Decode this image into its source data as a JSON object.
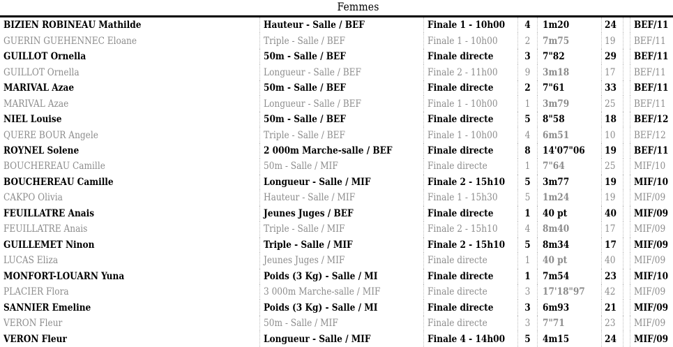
{
  "page": {
    "title": "Femmes"
  },
  "colors": {
    "background": "#ffffff",
    "strong_text": "#000000",
    "muted_text": "#8c8c8c",
    "separator_dotted": "#bcbcbc",
    "top_rule": "#000000"
  },
  "table": {
    "columns": [
      "name",
      "event",
      "final",
      "place",
      "result",
      "points",
      "category"
    ],
    "rows": [
      {
        "name": "BIZIEN ROBINEAU Mathilde",
        "event": "Hauteur - Salle / BEF",
        "final": "Finale 1 - 10h00",
        "place": "4",
        "result": "1m20",
        "points": "24",
        "category": "BEF/11",
        "emphasis": "strong"
      },
      {
        "name": "GUERIN GUEHENNEC Eloane",
        "event": "Triple - Salle / BEF",
        "final": "Finale 1 - 10h00",
        "place": "2",
        "result": "7m75",
        "points": "19",
        "category": "BEF/11",
        "emphasis": "muted"
      },
      {
        "name": "GUILLOT Ornella",
        "event": "50m - Salle / BEF",
        "final": "Finale directe",
        "place": "3",
        "result": "7\"82",
        "points": "29",
        "category": "BEF/11",
        "emphasis": "strong"
      },
      {
        "name": "GUILLOT Ornella",
        "event": "Longueur - Salle / BEF",
        "final": "Finale 2 - 11h00",
        "place": "9",
        "result": "3m18",
        "points": "17",
        "category": "BEF/11",
        "emphasis": "muted"
      },
      {
        "name": "MARIVAL Azae",
        "event": "50m - Salle / BEF",
        "final": "Finale directe",
        "place": "2",
        "result": "7\"61",
        "points": "33",
        "category": "BEF/11",
        "emphasis": "strong"
      },
      {
        "name": "MARIVAL Azae",
        "event": "Longueur - Salle / BEF",
        "final": "Finale 1 - 10h00",
        "place": "1",
        "result": "3m79",
        "points": "25",
        "category": "BEF/11",
        "emphasis": "muted"
      },
      {
        "name": "NIEL Louise",
        "event": "50m - Salle / BEF",
        "final": "Finale directe",
        "place": "5",
        "result": "8\"58",
        "points": "18",
        "category": "BEF/12",
        "emphasis": "strong"
      },
      {
        "name": "QUERE BOUR Angele",
        "event": "Triple - Salle / BEF",
        "final": "Finale 1 - 10h00",
        "place": "4",
        "result": "6m51",
        "points": "10",
        "category": "BEF/12",
        "emphasis": "muted"
      },
      {
        "name": "ROYNEL Solene",
        "event": "2 000m Marche-salle / BEF",
        "final": "Finale directe",
        "place": "8",
        "result": "14'07\"06",
        "points": "19",
        "category": "BEF/11",
        "emphasis": "strong"
      },
      {
        "name": "BOUCHEREAU Camille",
        "event": "50m - Salle / MIF",
        "final": "Finale directe",
        "place": "1",
        "result": "7\"64",
        "points": "25",
        "category": "MIF/10",
        "emphasis": "muted"
      },
      {
        "name": "BOUCHEREAU Camille",
        "event": "Longueur - Salle / MIF",
        "final": "Finale 2 - 15h10",
        "place": "5",
        "result": "3m77",
        "points": "19",
        "category": "MIF/10",
        "emphasis": "strong"
      },
      {
        "name": "CAKPO Olivia",
        "event": "Hauteur - Salle / MIF",
        "final": "Finale 1 - 15h30",
        "place": "5",
        "result": "1m24",
        "points": "19",
        "category": "MIF/09",
        "emphasis": "muted"
      },
      {
        "name": "FEUILLATRE Anais",
        "event": "Jeunes Juges / BEF",
        "final": "Finale directe",
        "place": "1",
        "result": "40 pt",
        "points": "40",
        "category": "MIF/09",
        "emphasis": "strong"
      },
      {
        "name": "FEUILLATRE Anais",
        "event": "Triple - Salle / MIF",
        "final": "Finale 2 - 15h10",
        "place": "4",
        "result": "8m40",
        "points": "17",
        "category": "MIF/09",
        "emphasis": "muted"
      },
      {
        "name": "GUILLEMET Ninon",
        "event": "Triple - Salle / MIF",
        "final": "Finale 2 - 15h10",
        "place": "5",
        "result": "8m34",
        "points": "17",
        "category": "MIF/09",
        "emphasis": "strong"
      },
      {
        "name": "LUCAS Eliza",
        "event": "Jeunes Juges / MIF",
        "final": "Finale directe",
        "place": "1",
        "result": "40 pt",
        "points": "40",
        "category": "MIF/09",
        "emphasis": "muted"
      },
      {
        "name": "MONFORT-LOUARN Yuna",
        "event": "Poids (3 Kg) - Salle / MI",
        "final": "Finale directe",
        "place": "1",
        "result": "7m54",
        "points": "23",
        "category": "MIF/10",
        "emphasis": "strong"
      },
      {
        "name": "PLACIER Flora",
        "event": "3 000m Marche-salle / MIF",
        "final": "Finale directe",
        "place": "3",
        "result": "17'18\"97",
        "points": "42",
        "category": "MIF/09",
        "emphasis": "muted"
      },
      {
        "name": "SANNIER Emeline",
        "event": "Poids (3 Kg) - Salle / MI",
        "final": "Finale directe",
        "place": "3",
        "result": "6m93",
        "points": "21",
        "category": "MIF/09",
        "emphasis": "strong"
      },
      {
        "name": "VERON Fleur",
        "event": "50m - Salle / MIF",
        "final": "Finale directe",
        "place": "3",
        "result": "7\"71",
        "points": "23",
        "category": "MIF/09",
        "emphasis": "muted"
      },
      {
        "name": "VERON Fleur",
        "event": "Longueur - Salle / MIF",
        "final": "Finale 4 - 14h00",
        "place": "5",
        "result": "4m15",
        "points": "24",
        "category": "MIF/09",
        "emphasis": "strong"
      }
    ]
  }
}
